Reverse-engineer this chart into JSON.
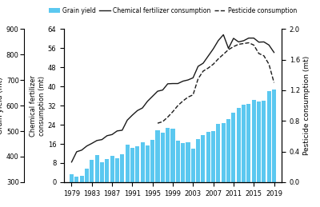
{
  "years": [
    1979,
    1980,
    1981,
    1982,
    1983,
    1984,
    1985,
    1986,
    1987,
    1988,
    1989,
    1990,
    1991,
    1992,
    1993,
    1994,
    1995,
    1996,
    1997,
    1998,
    1999,
    2000,
    2001,
    2002,
    2003,
    2004,
    2005,
    2006,
    2007,
    2008,
    2009,
    2010,
    2011,
    2012,
    2013,
    2014,
    2015,
    2016,
    2017,
    2018,
    2019
  ],
  "grain_yield": [
    332,
    321,
    325,
    354,
    387,
    407,
    379,
    391,
    403,
    394,
    408,
    446,
    435,
    442,
    456,
    445,
    467,
    504,
    494,
    512,
    508,
    462,
    452,
    457,
    431,
    469,
    484,
    498,
    501,
    528,
    531,
    547,
    571,
    590,
    602,
    607,
    621,
    616,
    618,
    658,
    664
  ],
  "chem_fert": [
    8.4,
    12.7,
    13.4,
    15.1,
    16.2,
    17.4,
    17.8,
    19.4,
    19.9,
    21.4,
    21.7,
    25.9,
    28.0,
    29.9,
    31.0,
    33.8,
    35.9,
    38.0,
    38.5,
    41.1,
    41.2,
    41.2,
    42.2,
    42.7,
    43.6,
    48.4,
    49.7,
    52.7,
    55.7,
    59.2,
    61.6,
    55.9,
    60.1,
    58.6,
    59.1,
    60.2,
    60.2,
    58.5,
    58.6,
    57.3,
    54.2
  ],
  "pesticide": [
    null,
    null,
    null,
    null,
    null,
    null,
    null,
    null,
    null,
    null,
    null,
    null,
    null,
    null,
    null,
    null,
    null,
    0.77,
    0.79,
    0.85,
    0.92,
    1.0,
    1.06,
    1.11,
    1.14,
    1.35,
    1.45,
    1.49,
    1.54,
    1.61,
    1.67,
    1.73,
    1.77,
    1.8,
    1.81,
    1.82,
    1.79,
    1.68,
    1.65,
    1.54,
    1.3
  ],
  "bar_color": "#5bc8f0",
  "line_color": "#1a1a1a",
  "grain_ylim": [
    300,
    900
  ],
  "grain_yticks": [
    300,
    400,
    500,
    600,
    700,
    800,
    900
  ],
  "chem_ylim": [
    0,
    64
  ],
  "chem_yticks": [
    0,
    8,
    16,
    24,
    32,
    40,
    48,
    56,
    64
  ],
  "pest_ylim": [
    0.0,
    2.0
  ],
  "pest_yticks": [
    0.0,
    0.4,
    0.8,
    1.2,
    1.6,
    2.0
  ],
  "xticks": [
    1979,
    1983,
    1987,
    1991,
    1995,
    1999,
    2003,
    2007,
    2011,
    2015,
    2019
  ],
  "xlim": [
    1977.5,
    2020.5
  ]
}
